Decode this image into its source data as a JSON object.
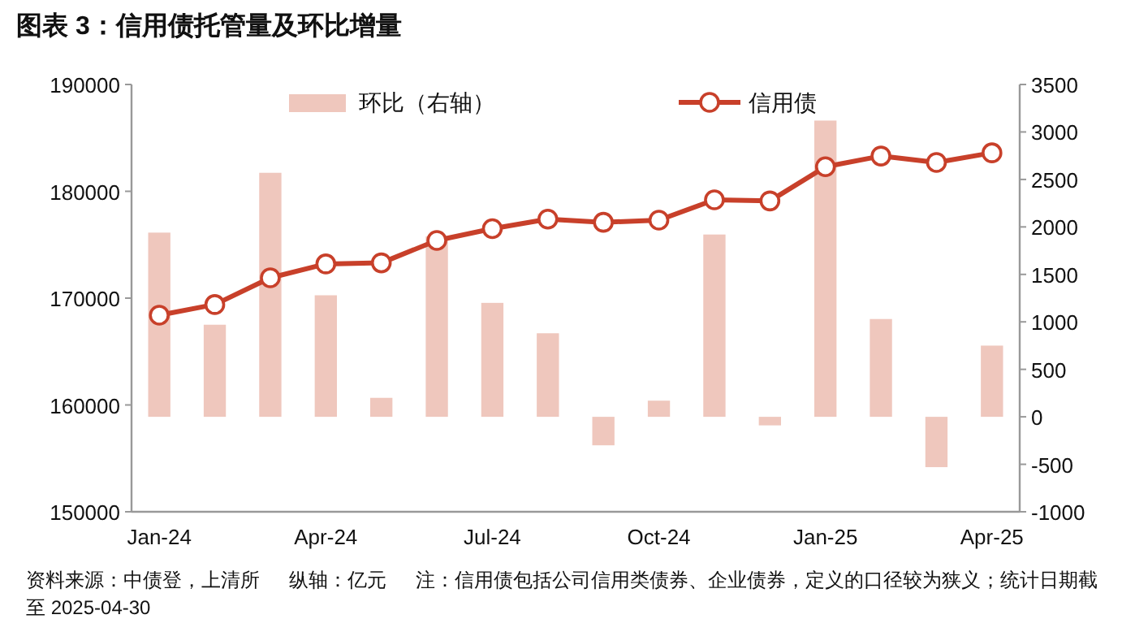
{
  "chart_data": {
    "type": "line",
    "title": "图表 3：信用债托管量及环比增量",
    "categories": [
      "Jan-24",
      null,
      null,
      "Apr-24",
      null,
      null,
      "Jul-24",
      null,
      null,
      "Oct-24",
      null,
      null,
      "Jan-25",
      null,
      null,
      "Apr-25"
    ],
    "series": [
      {
        "name": "环比（右轴）",
        "type": "bar",
        "axis": "y2",
        "color": "#efc7bd",
        "values": [
          1940,
          970,
          2570,
          1280,
          200,
          1900,
          1200,
          880,
          -300,
          170,
          1920,
          -90,
          3120,
          1030,
          -530,
          750
        ]
      },
      {
        "name": "信用债",
        "axis": "y",
        "color": "#c8402a",
        "marker": "circle",
        "values": [
          168400,
          169400,
          171900,
          173200,
          173300,
          175400,
          176500,
          177400,
          177100,
          177300,
          179200,
          179100,
          182300,
          183300,
          182700,
          183600
        ]
      }
    ],
    "ylim": [
      150000,
      190000
    ],
    "yticks": [
      150000,
      160000,
      170000,
      180000,
      190000
    ],
    "y2lim": [
      -1000,
      3500
    ],
    "y2ticks": [
      -1000,
      -500,
      0,
      500,
      1000,
      1500,
      2000,
      2500,
      3000,
      3500
    ],
    "grid": false,
    "legend": "top",
    "annotations": [
      "资料来源：中债登，上清所",
      "纵轴：亿元",
      "注：信用债包括公司信用类债券、企业债券，定义的口径较为狭义；统计日期截至 2025-04-30"
    ]
  }
}
